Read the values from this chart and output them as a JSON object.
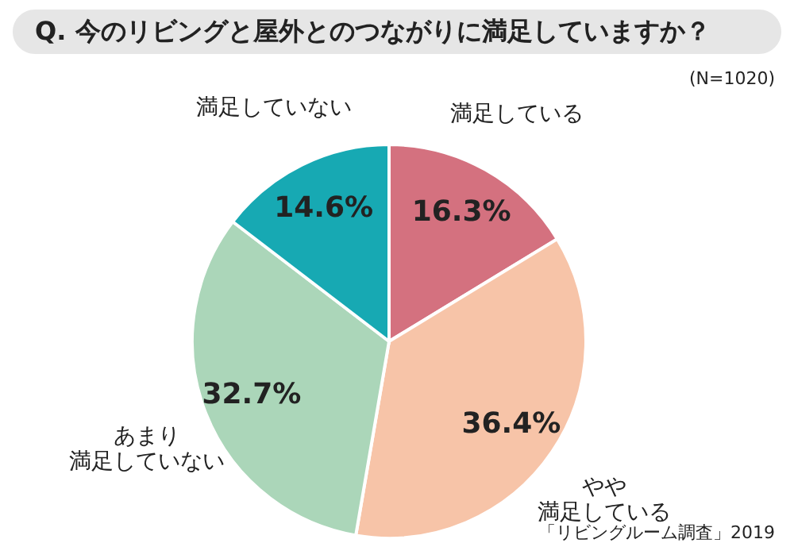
{
  "chart_data": {
    "type": "pie",
    "title": "Q. 今のリビングと屋外とのつながりに満足していますか？",
    "categories": [
      "満足している",
      "やや満足している",
      "あまり満足していない",
      "満足していない"
    ],
    "values": [
      16.3,
      36.4,
      32.7,
      14.6
    ],
    "colors": [
      "#d4717f",
      "#f7c4a8",
      "#abd6b9",
      "#17a9b3"
    ],
    "value_labels": [
      "16.3%",
      "36.4%",
      "32.7%",
      "14.6%"
    ],
    "legend": false,
    "annotations": [
      "(N=1020)",
      "「リビングルーム調査」2019"
    ]
  }
}
